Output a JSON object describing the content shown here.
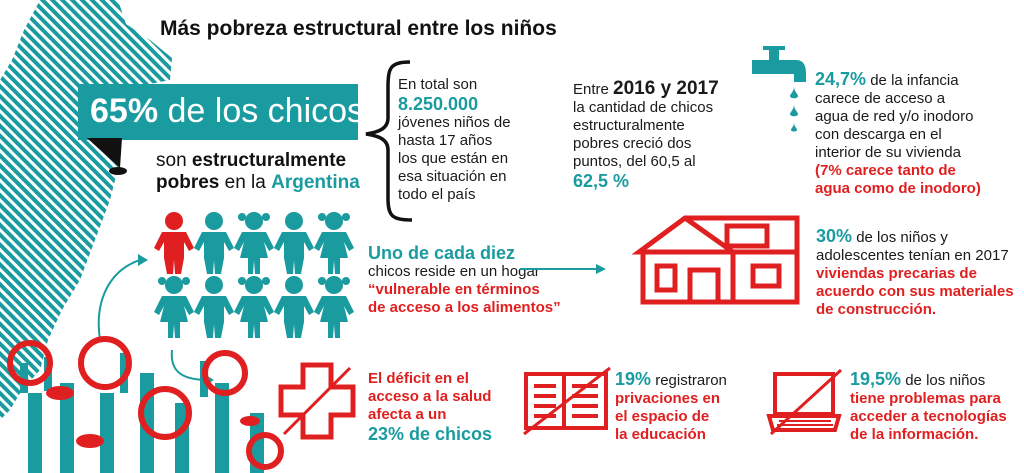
{
  "title": "Más pobreza estructural entre los niños",
  "hero": {
    "pct": "65%",
    "label": " de los chicos",
    "line2_pre": "son ",
    "line2_bold": "estructuralmente",
    "line3_bold": "pobres",
    "line3_mid": " en la ",
    "line3_country": "Argentina"
  },
  "total": {
    "l1": "En total son",
    "number": "8.250.000",
    "lines": [
      "jóvenes niños de",
      "hasta 17 años",
      "los que están en",
      "esa situación en",
      "todo el país"
    ]
  },
  "growth": {
    "l1_pre": "Entre ",
    "years": "2016 y 2017",
    "lines": [
      "la cantidad de chicos",
      "estructuralmente",
      "pobres creció dos",
      "puntos, del 60,5 al"
    ],
    "value": "62,5 %"
  },
  "water": {
    "pct": "24,7%",
    "l1_rest": " de la infancia",
    "lines": [
      "carece de acceso a",
      "agua de red y/o inodoro",
      "con descarga en el",
      "interior de su vivienda"
    ],
    "red1": "(7% carece tanto de",
    "red2": "agua como de inodoro)"
  },
  "food": {
    "head": "Uno de cada diez",
    "l2": "chicos reside en un hogar",
    "red1": "“vulnerable en términos",
    "red2": "de acceso a los alimentos”"
  },
  "housing": {
    "pct": "30%",
    "l1_rest": " de los niños y",
    "l2": "adolescentes tenían en 2017",
    "red": [
      "viviendas precarias de",
      "acuerdo con sus materiales",
      "de construcción."
    ]
  },
  "health": {
    "red": [
      "El déficit en el",
      "acceso a la salud",
      "afecta a un"
    ],
    "value": "23% de chicos"
  },
  "education": {
    "pct": "19%",
    "l1_rest": " registraron",
    "red": [
      "privaciones en",
      "el espacio de",
      "la educación"
    ]
  },
  "technology": {
    "pct": "19,5%",
    "l1_rest": " de los niños",
    "red": [
      "tiene problemas para",
      "acceder a tecnologías",
      "de la información."
    ]
  },
  "colors": {
    "teal": "#1a9ba0",
    "red": "#e02020",
    "dark": "#1a1a1a"
  },
  "icons": [
    "argentina-map-icon",
    "faucet-icon",
    "children-icon",
    "house-icon",
    "health-cross-icon",
    "book-icon",
    "laptop-icon",
    "raised-hands-icon"
  ]
}
